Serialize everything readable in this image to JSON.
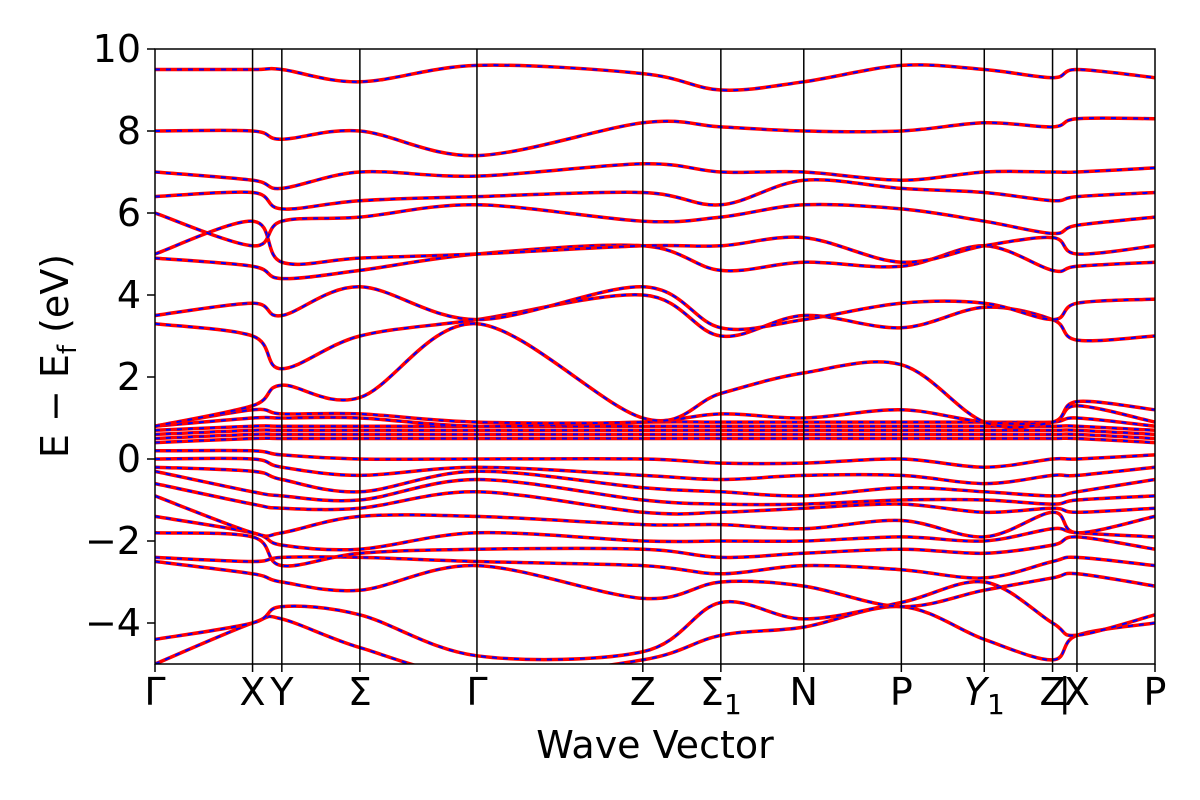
{
  "chart_data": {
    "type": "line",
    "xlabel": "Wave Vector",
    "ylabel": "E − E",
    "ylabel_sub": "f",
    "ylabel_unit": " (eV)",
    "ylim": [
      -5,
      10
    ],
    "yticks": [
      10,
      8,
      6,
      4,
      2,
      0,
      -2,
      -4
    ],
    "ytick_labels": [
      "10",
      "8",
      "6",
      "4",
      "2",
      "0",
      "−2",
      "−4"
    ],
    "k_ticks": [
      {
        "pos": 0.0,
        "label": "Γ",
        "sub": ""
      },
      {
        "pos": 1.0,
        "label": "X",
        "sub": ""
      },
      {
        "pos": 1.3,
        "label": "Y",
        "sub": ""
      },
      {
        "pos": 2.1,
        "label": "Σ",
        "sub": ""
      },
      {
        "pos": 3.3,
        "label": "Γ",
        "sub": ""
      },
      {
        "pos": 5.0,
        "label": "Z",
        "sub": ""
      },
      {
        "pos": 5.8,
        "label": "Σ",
        "sub": "1"
      },
      {
        "pos": 6.65,
        "label": "N",
        "sub": ""
      },
      {
        "pos": 7.65,
        "label": "P",
        "sub": ""
      },
      {
        "pos": 8.5,
        "label": "Y",
        "sub": "1",
        "italic": true
      },
      {
        "pos": 9.2,
        "label": "Z",
        "sub": ""
      },
      {
        "pos": 9.45,
        "label": "X",
        "sub": ""
      },
      {
        "pos": 10.25,
        "label": "P",
        "sub": ""
      }
    ],
    "break_label": "|",
    "xlim": [
      0,
      10.25
    ],
    "series": [
      {
        "color": "#ff0000",
        "style": "solid"
      },
      {
        "color": "#0000ff",
        "style": "dashed"
      }
    ],
    "bands": [
      [
        -5.0,
        -4.0,
        -3.9,
        -4.6,
        -5.3,
        -4.9,
        -4.3,
        -4.1,
        -3.6,
        -4.4,
        -4.9,
        -4.3,
        -4.0,
        -3.5
      ],
      [
        -4.4,
        -4.0,
        -3.6,
        -3.8,
        -4.8,
        -4.7,
        -3.5,
        -3.9,
        -3.5,
        -3.0,
        -4.0,
        -4.3,
        -3.8,
        -3.5
      ],
      [
        -2.5,
        -2.8,
        -3.0,
        -3.2,
        -2.6,
        -3.4,
        -3.0,
        -3.1,
        -3.6,
        -3.2,
        -2.9,
        -2.8,
        -3.1,
        -3.0
      ],
      [
        -2.4,
        -2.5,
        -2.4,
        -2.4,
        -2.5,
        -2.6,
        -2.8,
        -2.6,
        -2.7,
        -2.9,
        -2.5,
        -2.4,
        -2.6,
        -2.7
      ],
      [
        -1.8,
        -1.9,
        -2.6,
        -2.3,
        -2.2,
        -2.2,
        -2.4,
        -2.3,
        -2.2,
        -2.3,
        -2.1,
        -1.9,
        -2.2,
        -2.3
      ],
      [
        -1.4,
        -1.8,
        -2.1,
        -2.2,
        -1.8,
        -2.0,
        -2.0,
        -2.0,
        -1.9,
        -2.0,
        -1.7,
        -1.8,
        -1.9,
        -2.0
      ],
      [
        -0.9,
        -1.8,
        -1.8,
        -1.4,
        -1.4,
        -1.6,
        -1.6,
        -1.7,
        -1.5,
        -1.9,
        -1.3,
        -1.8,
        -1.4,
        -1.5
      ],
      [
        -0.6,
        -1.1,
        -1.2,
        -1.2,
        -0.8,
        -1.3,
        -1.3,
        -1.2,
        -1.1,
        -1.3,
        -1.2,
        -1.3,
        -1.2,
        -1.1
      ],
      [
        -0.3,
        -0.8,
        -0.9,
        -1.0,
        -0.5,
        -1.0,
        -1.1,
        -1.1,
        -1.0,
        -1.0,
        -1.1,
        -1.0,
        -0.9,
        -0.9
      ],
      [
        -0.2,
        -0.3,
        -0.5,
        -0.8,
        -0.3,
        -0.7,
        -0.8,
        -0.9,
        -0.7,
        -0.8,
        -0.9,
        -0.8,
        -0.5,
        -0.6
      ],
      [
        0.0,
        0.0,
        -0.2,
        -0.4,
        -0.2,
        -0.4,
        -0.5,
        -0.4,
        -0.4,
        -0.6,
        -0.4,
        -0.4,
        -0.2,
        -0.3
      ],
      [
        0.2,
        0.2,
        0.1,
        0.0,
        0.0,
        0.0,
        -0.1,
        -0.1,
        0.0,
        -0.2,
        0.0,
        0.0,
        0.1,
        0.1
      ],
      [
        0.4,
        0.5,
        0.5,
        0.5,
        0.5,
        0.5,
        0.5,
        0.5,
        0.5,
        0.5,
        0.5,
        0.5,
        0.4,
        0.4
      ],
      [
        0.5,
        0.6,
        0.6,
        0.6,
        0.6,
        0.6,
        0.6,
        0.6,
        0.6,
        0.6,
        0.6,
        0.6,
        0.5,
        0.5
      ],
      [
        0.6,
        0.7,
        0.7,
        0.7,
        0.7,
        0.7,
        0.7,
        0.7,
        0.7,
        0.7,
        0.7,
        0.7,
        0.6,
        0.6
      ],
      [
        0.7,
        0.8,
        0.8,
        0.8,
        0.8,
        0.8,
        0.8,
        0.8,
        0.8,
        0.8,
        0.8,
        0.8,
        0.7,
        0.7
      ],
      [
        0.8,
        1.0,
        1.0,
        1.0,
        0.8,
        0.9,
        0.9,
        0.9,
        0.9,
        0.9,
        0.9,
        1.0,
        0.8,
        0.8
      ],
      [
        0.8,
        1.2,
        1.1,
        1.1,
        0.9,
        0.9,
        1.1,
        1.0,
        1.2,
        0.9,
        0.9,
        1.3,
        0.9,
        0.9
      ],
      [
        0.8,
        1.3,
        1.8,
        1.5,
        3.3,
        1.0,
        1.6,
        2.1,
        2.3,
        0.9,
        0.9,
        1.4,
        1.2,
        1.1
      ],
      [
        3.3,
        3.0,
        2.2,
        3.0,
        3.4,
        4.0,
        3.0,
        3.5,
        3.2,
        3.7,
        3.4,
        2.9,
        3.0,
        3.3
      ],
      [
        3.5,
        3.8,
        3.5,
        4.2,
        3.4,
        4.2,
        3.2,
        3.4,
        3.8,
        3.8,
        3.4,
        3.8,
        3.9,
        3.8
      ],
      [
        4.9,
        4.7,
        4.4,
        4.6,
        5.0,
        5.2,
        4.6,
        4.8,
        4.7,
        5.2,
        4.6,
        4.7,
        4.8,
        4.8
      ],
      [
        5.0,
        5.8,
        4.8,
        4.9,
        5.0,
        5.2,
        5.2,
        5.4,
        4.8,
        5.2,
        5.4,
        5.0,
        5.2,
        5.4
      ],
      [
        6.0,
        5.2,
        5.8,
        5.9,
        6.2,
        5.8,
        5.9,
        6.2,
        6.1,
        5.8,
        5.5,
        5.7,
        5.9,
        6.1
      ],
      [
        6.4,
        6.5,
        6.1,
        6.3,
        6.4,
        6.5,
        6.2,
        6.8,
        6.6,
        6.5,
        6.3,
        6.4,
        6.5,
        6.2
      ],
      [
        7.0,
        6.8,
        6.6,
        7.0,
        6.9,
        7.2,
        7.0,
        7.0,
        6.8,
        7.0,
        7.0,
        7.0,
        7.1,
        7.5
      ],
      [
        8.0,
        8.0,
        7.8,
        8.0,
        7.4,
        8.2,
        8.1,
        8.0,
        8.0,
        8.2,
        8.1,
        8.3,
        8.3,
        8.3
      ],
      [
        9.5,
        9.5,
        9.5,
        9.2,
        9.6,
        9.4,
        9.0,
        9.2,
        9.6,
        9.5,
        9.3,
        9.5,
        9.3,
        9.5
      ]
    ]
  }
}
